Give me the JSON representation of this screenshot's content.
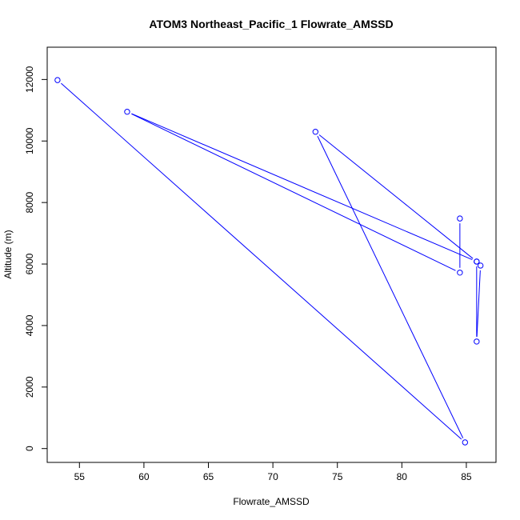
{
  "chart_data": {
    "type": "line",
    "title": "ATOM3 Northeast_Pacific_1 Flowrate_AMSSD",
    "xlabel": "Flowrate_AMSSD",
    "ylabel": "Altitude (m)",
    "xlim": [
      52.5,
      87.3
    ],
    "ylim": [
      -450,
      13050
    ],
    "xticks": [
      55,
      60,
      65,
      70,
      75,
      80,
      85
    ],
    "yticks": [
      0,
      2000,
      4000,
      6000,
      8000,
      10000,
      12000
    ],
    "grid": false,
    "markers": "open-circle",
    "series": [
      {
        "color": "#0000ff",
        "points": [
          {
            "x": 84.5,
            "y": 7480
          },
          {
            "x": 84.5,
            "y": 5720
          },
          {
            "x": 58.7,
            "y": 10950
          },
          {
            "x": 85.8,
            "y": 6080
          },
          {
            "x": 86.1,
            "y": 5950
          },
          {
            "x": 85.8,
            "y": 3480
          },
          {
            "x": 85.8,
            "y": 6080
          },
          {
            "x": 73.3,
            "y": 10300
          },
          {
            "x": 84.9,
            "y": 200
          },
          {
            "x": 53.3,
            "y": 11980
          }
        ]
      }
    ]
  }
}
